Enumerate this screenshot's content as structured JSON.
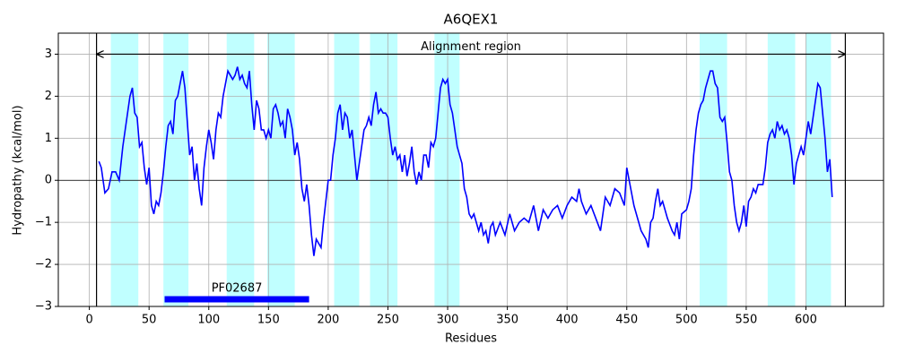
{
  "chart_data": {
    "type": "line",
    "title": "A6QEX1",
    "x_label": "Residues",
    "y_label": "Hydropathy (kcal/mol)",
    "xlim": [
      -26,
      665
    ],
    "ylim": [
      -3,
      3.5
    ],
    "xticks": [
      0,
      50,
      100,
      150,
      200,
      250,
      300,
      350,
      400,
      450,
      500,
      550,
      600
    ],
    "yticks": [
      {
        "value": -3,
        "label": "−3"
      },
      {
        "value": -2,
        "label": "−2"
      },
      {
        "value": -1,
        "label": "−1"
      },
      0,
      1,
      2,
      3
    ],
    "grid": true,
    "highlight_color": "#c0ffff",
    "highlight_regions": [
      [
        18,
        41
      ],
      [
        62,
        83
      ],
      [
        115,
        138
      ],
      [
        149,
        172
      ],
      [
        205,
        226
      ],
      [
        235,
        258
      ],
      [
        289,
        310
      ],
      [
        511,
        534
      ],
      [
        568,
        591
      ],
      [
        600,
        621
      ]
    ],
    "alignment_region": {
      "label": "Alignment region",
      "start": 6,
      "end": 633,
      "y": 3
    },
    "domain": {
      "label": "PF02687",
      "start": 63,
      "end": 184,
      "y": -2.83,
      "color": "#0000ff"
    },
    "series": [
      {
        "name": "Hydropathy",
        "color": "#0000ff",
        "x": [
          8,
          10,
          13,
          16,
          19,
          22,
          25,
          28,
          31,
          34,
          36,
          38,
          40,
          42,
          44,
          46,
          48,
          50,
          52,
          54,
          56,
          58,
          60,
          62,
          64,
          66,
          68,
          70,
          72,
          74,
          76,
          78,
          80,
          82,
          84,
          86,
          88,
          90,
          92,
          94,
          96,
          98,
          100,
          102,
          104,
          106,
          108,
          110,
          112,
          114,
          116,
          118,
          120,
          122,
          124,
          126,
          128,
          130,
          132,
          134,
          136,
          138,
          140,
          142,
          144,
          146,
          148,
          150,
          152,
          154,
          156,
          158,
          160,
          162,
          164,
          166,
          168,
          170,
          172,
          174,
          176,
          178,
          180,
          182,
          184,
          186,
          188,
          190,
          192,
          194,
          196,
          198,
          200,
          202,
          204,
          206,
          208,
          210,
          212,
          214,
          216,
          218,
          220,
          222,
          224,
          226,
          228,
          230,
          232,
          234,
          236,
          238,
          240,
          242,
          244,
          246,
          248,
          250,
          252,
          254,
          256,
          258,
          260,
          262,
          264,
          266,
          268,
          270,
          272,
          274,
          276,
          278,
          280,
          282,
          284,
          286,
          288,
          290,
          292,
          294,
          296,
          298,
          300,
          302,
          304,
          306,
          308,
          310,
          312,
          314,
          316,
          318,
          320,
          322,
          324,
          326,
          328,
          330,
          332,
          334,
          336,
          338,
          340,
          344,
          348,
          352,
          356,
          360,
          364,
          368,
          372,
          376,
          380,
          384,
          388,
          392,
          396,
          400,
          404,
          408,
          410,
          412,
          416,
          420,
          424,
          428,
          432,
          436,
          440,
          444,
          448,
          450,
          452,
          456,
          460,
          462,
          464,
          466,
          468,
          470,
          472,
          474,
          476,
          478,
          480,
          484,
          488,
          490,
          492,
          494,
          496,
          500,
          502,
          504,
          506,
          508,
          510,
          512,
          514,
          516,
          518,
          520,
          522,
          524,
          526,
          528,
          530,
          532,
          534,
          536,
          538,
          540,
          542,
          544,
          546,
          548,
          550,
          552,
          554,
          556,
          558,
          560,
          564,
          566,
          568,
          570,
          572,
          574,
          576,
          578,
          580,
          582,
          584,
          586,
          588,
          590,
          592,
          594,
          596,
          598,
          600,
          602,
          604,
          606,
          608,
          610,
          612,
          614,
          616,
          618,
          620,
          622
        ],
        "values": [
          0.45,
          0.3,
          -0.3,
          -0.2,
          0.2,
          0.2,
          0.0,
          0.8,
          1.4,
          2.0,
          2.2,
          1.6,
          1.5,
          0.8,
          0.9,
          0.3,
          -0.1,
          0.3,
          -0.6,
          -0.8,
          -0.5,
          -0.6,
          -0.3,
          0.2,
          0.8,
          1.3,
          1.4,
          1.1,
          1.9,
          2.0,
          2.3,
          2.6,
          2.2,
          1.4,
          0.6,
          0.8,
          0.0,
          0.4,
          -0.2,
          -0.6,
          0.3,
          0.8,
          1.2,
          0.9,
          0.5,
          1.2,
          1.6,
          1.5,
          2.0,
          2.3,
          2.6,
          2.5,
          2.4,
          2.5,
          2.7,
          2.4,
          2.5,
          2.3,
          2.2,
          2.6,
          1.8,
          1.2,
          1.9,
          1.7,
          1.2,
          1.2,
          1.0,
          1.2,
          1.0,
          1.7,
          1.8,
          1.6,
          1.3,
          1.4,
          1.0,
          1.7,
          1.5,
          1.2,
          0.6,
          0.9,
          0.5,
          -0.2,
          -0.5,
          -0.1,
          -0.6,
          -1.3,
          -1.8,
          -1.4,
          -1.5,
          -1.6,
          -1.0,
          -0.5,
          0.0,
          0.0,
          0.6,
          1.0,
          1.6,
          1.8,
          1.2,
          1.6,
          1.5,
          1.0,
          1.2,
          0.6,
          0.0,
          0.4,
          0.8,
          1.2,
          1.3,
          1.5,
          1.3,
          1.8,
          2.1,
          1.6,
          1.7,
          1.6,
          1.6,
          1.5,
          1.0,
          0.6,
          0.8,
          0.5,
          0.6,
          0.2,
          0.6,
          0.1,
          0.4,
          0.8,
          0.2,
          -0.1,
          0.2,
          0.0,
          0.6,
          0.6,
          0.3,
          0.9,
          0.8,
          1.0,
          1.6,
          2.2,
          2.4,
          2.3,
          2.4,
          1.8,
          1.6,
          1.2,
          0.8,
          0.6,
          0.4,
          -0.2,
          -0.4,
          -0.8,
          -0.9,
          -0.8,
          -1.0,
          -1.2,
          -1.0,
          -1.3,
          -1.2,
          -1.5,
          -1.1,
          -1.0,
          -1.3,
          -1.0,
          -1.3,
          -0.8,
          -1.2,
          -1.0,
          -0.9,
          -1.0,
          -0.6,
          -1.2,
          -0.7,
          -0.9,
          -0.7,
          -0.6,
          -0.9,
          -0.6,
          -0.4,
          -0.5,
          -0.2,
          -0.5,
          -0.8,
          -0.6,
          -0.9,
          -1.2,
          -0.4,
          -0.6,
          -0.2,
          -0.3,
          -0.6,
          0.3,
          0.0,
          -0.6,
          -1.0,
          -1.2,
          -1.3,
          -1.4,
          -1.6,
          -1.0,
          -0.9,
          -0.5,
          -0.2,
          -0.6,
          -0.5,
          -0.9,
          -1.2,
          -1.3,
          -1.0,
          -1.4,
          -0.8,
          -0.7,
          -0.5,
          -0.2,
          0.6,
          1.2,
          1.6,
          1.8,
          1.9,
          2.2,
          2.4,
          2.6,
          2.6,
          2.3,
          2.2,
          1.5,
          1.4,
          1.5,
          0.9,
          0.2,
          0.0,
          -0.6,
          -1.0,
          -1.2,
          -1.0,
          -0.6,
          -1.1,
          -0.5,
          -0.4,
          -0.2,
          -0.3,
          -0.1,
          -0.1,
          0.3,
          0.9,
          1.1,
          1.2,
          1.0,
          1.4,
          1.2,
          1.3,
          1.1,
          1.2,
          1.0,
          0.6,
          -0.1,
          0.4,
          0.6,
          0.8,
          0.6,
          1.0,
          1.4,
          1.1,
          1.5,
          1.9,
          2.3,
          2.2,
          1.6,
          1.0,
          0.2,
          0.5,
          -0.4
        ]
      }
    ]
  }
}
